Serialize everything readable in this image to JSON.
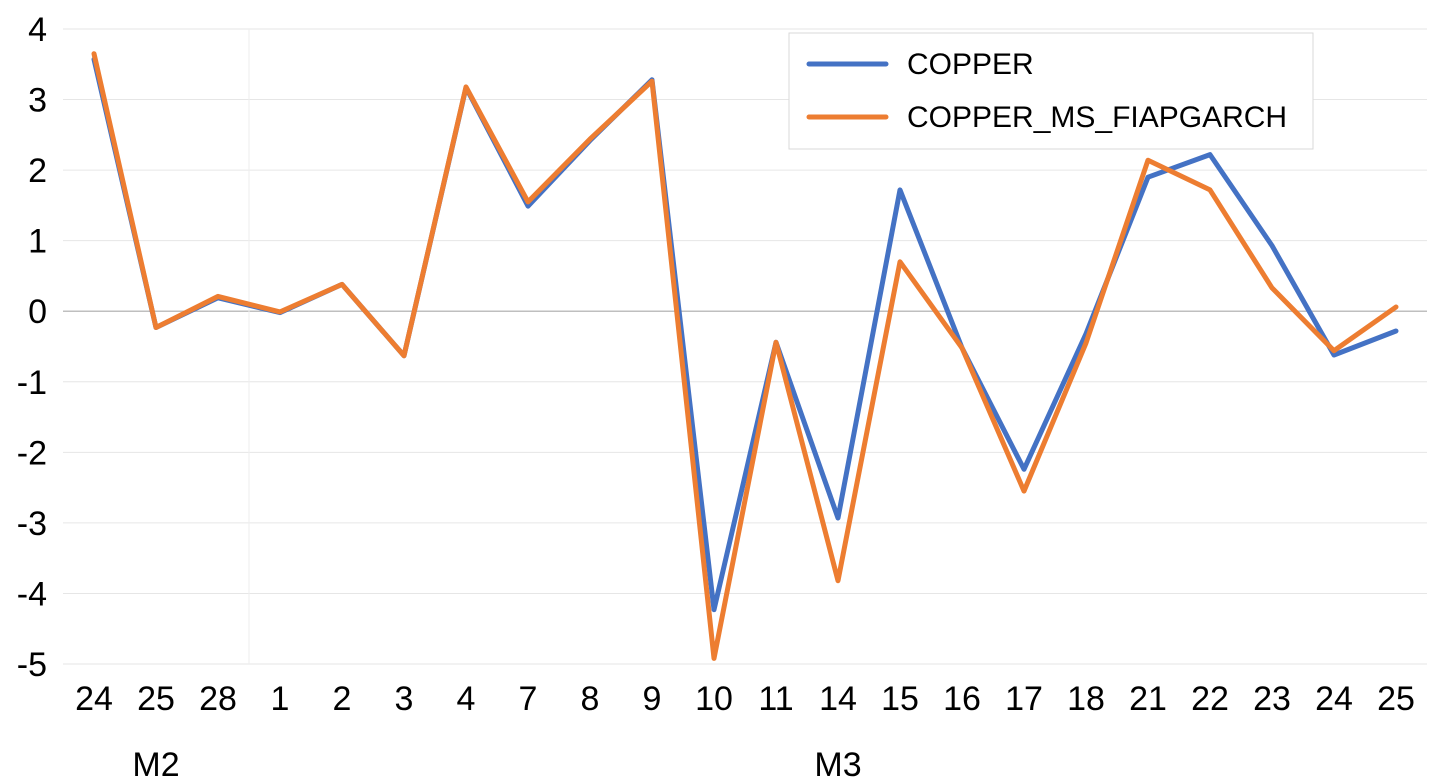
{
  "chart_data": {
    "type": "line",
    "title": "",
    "xlabel": "",
    "ylabel": "",
    "ylim": [
      -5,
      4
    ],
    "yticks": [
      4,
      3,
      2,
      1,
      0,
      -1,
      -2,
      -3,
      -4,
      -5
    ],
    "grid": true,
    "legend_position": "top-right",
    "categories": [
      "24",
      "25",
      "28",
      "1",
      "2",
      "3",
      "4",
      "7",
      "8",
      "9",
      "10",
      "11",
      "14",
      "15",
      "16",
      "17",
      "18",
      "21",
      "22",
      "23",
      "24",
      "25"
    ],
    "groups": [
      {
        "label": "M2",
        "start": 0,
        "end": 2
      },
      {
        "label": "M3",
        "start": 3,
        "end": 21
      }
    ],
    "series": [
      {
        "name": "COPPER",
        "color": "#4472C4",
        "values": [
          3.57,
          -0.23,
          0.19,
          -0.02,
          0.38,
          -0.63,
          3.17,
          1.49,
          2.42,
          3.28,
          -4.23,
          -0.44,
          -2.93,
          1.72,
          -0.52,
          -2.24,
          -0.32,
          1.9,
          2.22,
          0.93,
          -0.62,
          -0.28
        ]
      },
      {
        "name": "COPPER_MS_FIAPGARCH",
        "color": "#ED7D31",
        "values": [
          3.65,
          -0.23,
          0.21,
          -0.01,
          0.38,
          -0.63,
          3.18,
          1.55,
          2.44,
          3.26,
          -4.92,
          -0.44,
          -3.82,
          0.7,
          -0.52,
          -2.55,
          -0.45,
          2.14,
          1.72,
          0.33,
          -0.56,
          0.06
        ]
      }
    ]
  }
}
